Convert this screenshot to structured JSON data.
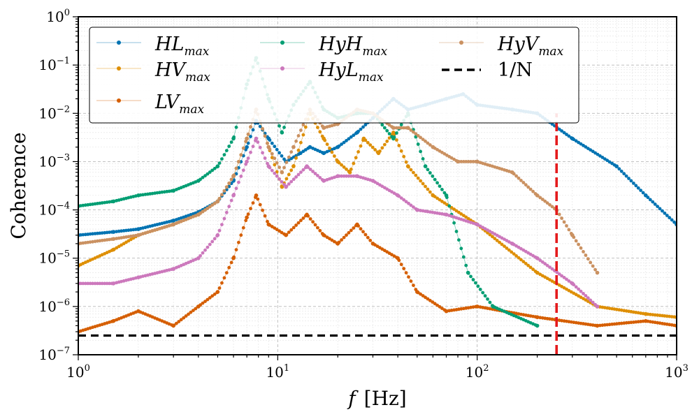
{
  "chart_data": {
    "type": "line",
    "title": "",
    "xlabel": {
      "symbol": "f",
      "unit": "[Hz]"
    },
    "ylabel": "Coherence",
    "xscale": "log",
    "yscale": "log",
    "xlim": [
      1,
      1000
    ],
    "ylim": [
      1e-07,
      1
    ],
    "grid": true,
    "legend_position": "top-left",
    "x_ticks": [
      {
        "base": "10",
        "exp": "0",
        "value": 1
      },
      {
        "base": "10",
        "exp": "1",
        "value": 10
      },
      {
        "base": "10",
        "exp": "2",
        "value": 100
      },
      {
        "base": "10",
        "exp": "3",
        "value": 1000
      }
    ],
    "y_ticks": [
      {
        "base": "10",
        "exp": "−7",
        "value": 1e-07
      },
      {
        "base": "10",
        "exp": "−6",
        "value": 1e-06
      },
      {
        "base": "10",
        "exp": "−5",
        "value": 1e-05
      },
      {
        "base": "10",
        "exp": "−4",
        "value": 0.0001
      },
      {
        "base": "10",
        "exp": "−3",
        "value": 0.001
      },
      {
        "base": "10",
        "exp": "−2",
        "value": 0.01
      },
      {
        "base": "10",
        "exp": "−1",
        "value": 0.1
      },
      {
        "base": "10",
        "exp": "0",
        "value": 1
      }
    ],
    "series": [
      {
        "name": "HL",
        "sub": "max",
        "color": "#0173b2",
        "x": [
          1,
          1.5,
          2,
          3,
          4,
          5,
          6,
          7,
          7.8,
          9,
          11,
          13,
          14.5,
          17,
          20,
          25,
          30,
          38,
          45,
          55,
          70,
          85,
          100,
          150,
          200,
          300,
          500,
          700,
          1000
        ],
        "y": [
          3e-05,
          3.5e-05,
          4e-05,
          6e-05,
          9e-05,
          0.00015,
          0.0004,
          0.002,
          0.007,
          0.003,
          0.001,
          0.0015,
          0.002,
          0.0015,
          0.002,
          0.004,
          0.008,
          0.02,
          0.012,
          0.015,
          0.02,
          0.025,
          0.015,
          0.012,
          0.01,
          0.003,
          0.0008,
          0.0002,
          5e-05
        ]
      },
      {
        "name": "HV",
        "sub": "max",
        "color": "#de8f05",
        "x": [
          1,
          1.5,
          2,
          3,
          4,
          5,
          6,
          7,
          7.8,
          9,
          10.5,
          12,
          14.5,
          17,
          20,
          23,
          27,
          32,
          38,
          45,
          60,
          100,
          200,
          400,
          700,
          1000
        ],
        "y": [
          7e-06,
          1.5e-05,
          3e-05,
          5e-05,
          8e-05,
          0.00015,
          0.0005,
          0.003,
          0.012,
          0.002,
          0.0003,
          0.0008,
          0.01,
          0.003,
          0.001,
          0.0006,
          0.003,
          0.0015,
          0.004,
          0.0008,
          0.0002,
          5e-05,
          5e-06,
          1e-06,
          7e-07,
          6e-07
        ]
      },
      {
        "name": "LV",
        "sub": "max",
        "color": "#d55e00",
        "x": [
          1,
          1.5,
          2,
          3,
          4,
          5,
          6,
          7,
          7.8,
          9,
          11,
          14,
          17,
          20,
          25,
          30,
          40,
          50,
          70,
          100,
          200,
          400,
          700,
          1000
        ],
        "y": [
          3e-07,
          5e-07,
          8e-07,
          4e-07,
          1e-06,
          2e-06,
          1e-05,
          7e-05,
          0.0002,
          5e-05,
          3e-05,
          8e-05,
          3e-05,
          2e-05,
          5e-05,
          2e-05,
          1e-05,
          2e-06,
          8e-07,
          1e-06,
          6e-07,
          4e-07,
          5e-07,
          4e-07
        ]
      },
      {
        "name": "HyH",
        "sub": "max",
        "color": "#029e73",
        "x": [
          1,
          1.5,
          2,
          3,
          4,
          5,
          6,
          7,
          7.8,
          9,
          10.5,
          12,
          14.5,
          17,
          20,
          25,
          30,
          38,
          45,
          55,
          70,
          90,
          120,
          200
        ],
        "y": [
          0.00012,
          0.00015,
          0.0002,
          0.00025,
          0.0004,
          0.0008,
          0.003,
          0.04,
          0.14,
          0.02,
          0.004,
          0.015,
          0.045,
          0.012,
          0.008,
          0.01,
          0.01,
          0.003,
          0.01,
          0.0008,
          0.0002,
          5e-06,
          1e-06,
          4e-07
        ]
      },
      {
        "name": "HyL",
        "sub": "max",
        "color": "#cc78bc",
        "x": [
          1,
          1.5,
          2,
          3,
          4,
          5,
          6,
          7,
          7.8,
          9,
          11,
          14,
          17,
          20,
          25,
          30,
          40,
          50,
          70,
          100,
          150,
          200,
          300,
          400
        ],
        "y": [
          3e-06,
          3e-06,
          4e-06,
          6e-06,
          1e-05,
          3e-05,
          0.0002,
          0.001,
          0.003,
          0.0008,
          0.0003,
          0.0008,
          0.0004,
          0.0005,
          0.0005,
          0.0004,
          0.0002,
          0.0001,
          8e-05,
          5e-05,
          2e-05,
          1e-05,
          3e-06,
          1e-06
        ]
      },
      {
        "name": "HyV",
        "sub": "max",
        "color": "#ca9161",
        "x": [
          1,
          1.5,
          2,
          3,
          4,
          5,
          6,
          7,
          7.8,
          9,
          10.5,
          12,
          14.5,
          17,
          20,
          25,
          30,
          38,
          45,
          60,
          80,
          100,
          150,
          200,
          250,
          300,
          400
        ],
        "y": [
          2e-05,
          2.5e-05,
          3e-05,
          5e-05,
          8e-05,
          0.00015,
          0.0005,
          0.003,
          0.012,
          0.002,
          0.0006,
          0.002,
          0.012,
          0.005,
          0.006,
          0.012,
          0.01,
          0.005,
          0.005,
          0.002,
          0.001,
          0.001,
          0.0006,
          0.0002,
          0.0001,
          3e-05,
          5e-06
        ]
      }
    ],
    "reference_lines": [
      {
        "label": "1/N",
        "orientation": "horizontal",
        "value": 2.5e-07,
        "color": "#000000",
        "style": "dashed"
      },
      {
        "label": "",
        "orientation": "vertical",
        "value": 250,
        "y_range": [
          1e-07,
          0.01
        ],
        "color": "#e41a1c",
        "style": "dashed"
      }
    ],
    "legend": [
      {
        "base": "HL",
        "sub": "max",
        "kind": "dots",
        "color": "#0173b2"
      },
      {
        "base": "HyH",
        "sub": "max",
        "kind": "dots",
        "color": "#029e73"
      },
      {
        "base": "HyV",
        "sub": "max",
        "kind": "dots",
        "color": "#ca9161"
      },
      {
        "base": "HV",
        "sub": "max",
        "kind": "dots",
        "color": "#de8f05"
      },
      {
        "base": "HyL",
        "sub": "max",
        "kind": "dots",
        "color": "#cc78bc"
      },
      {
        "base": "1/N",
        "sub": "",
        "kind": "dashed",
        "color": "#000000"
      },
      {
        "base": "LV",
        "sub": "max",
        "kind": "dots",
        "color": "#d55e00"
      }
    ]
  }
}
